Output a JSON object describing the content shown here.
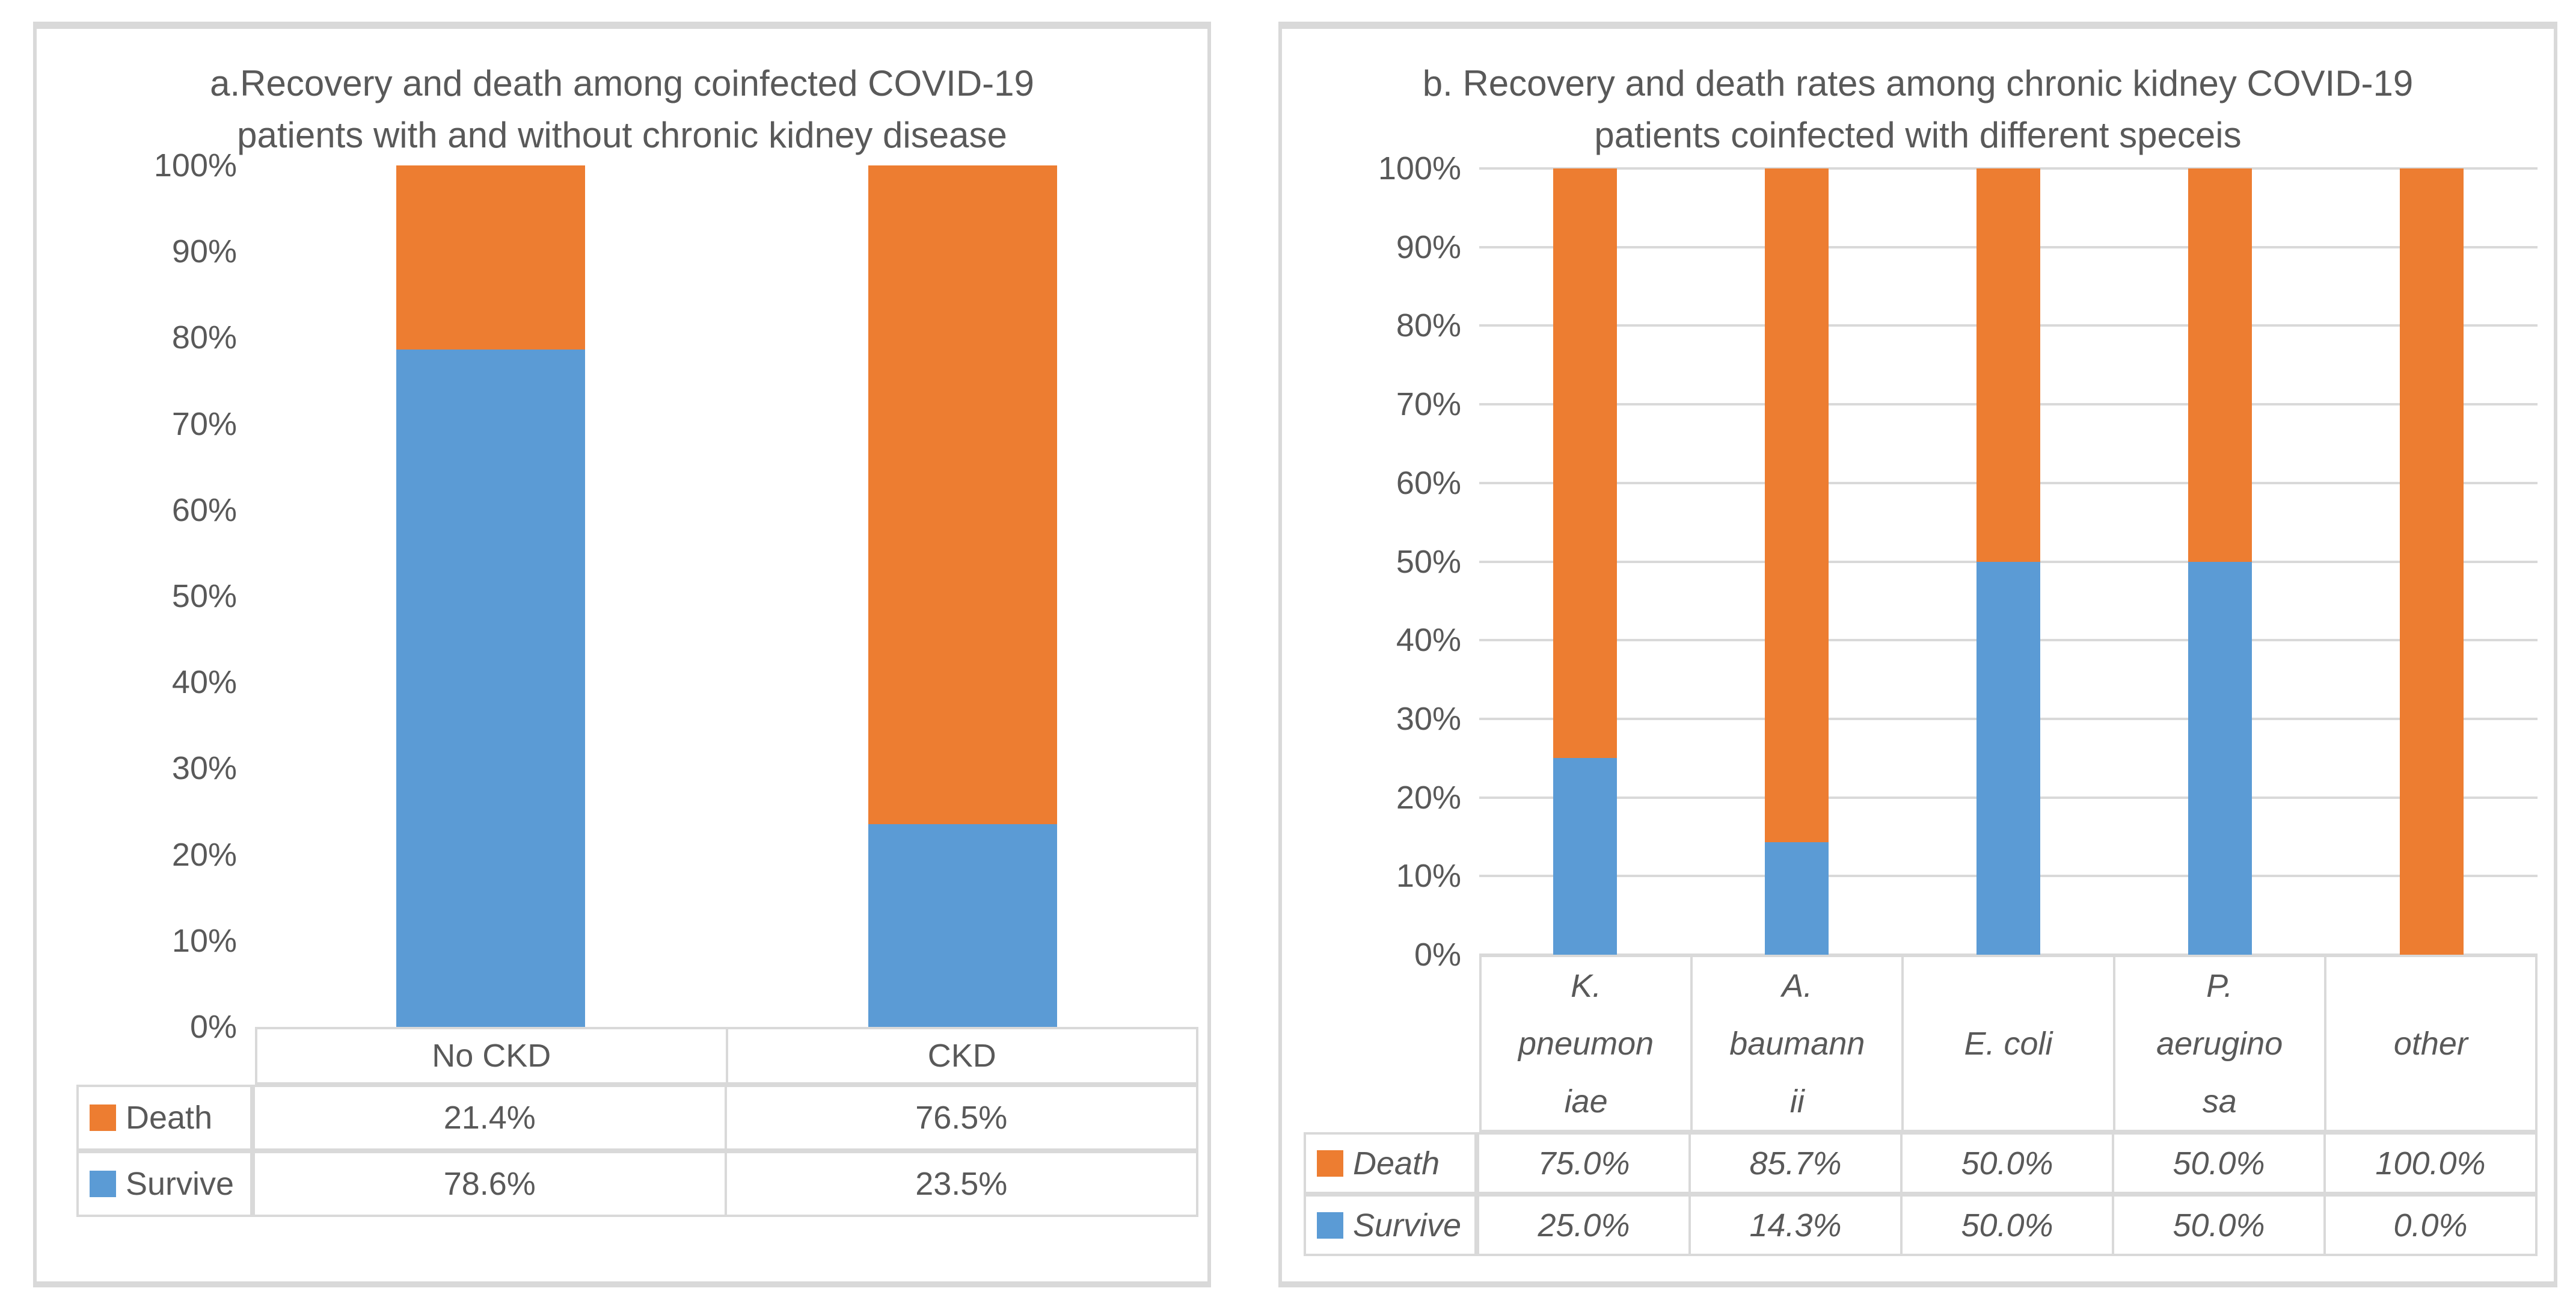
{
  "theme": {
    "background": "#ffffff",
    "text_color": "#595959",
    "border_color": "#d9d9d9",
    "death_color": "#ED7D31",
    "survive_color": "#5B9BD5"
  },
  "chart_data": [
    {
      "type": "bar",
      "stacked": true,
      "title_lines": [
        "a.Recovery and death among coinfected COVID-19",
        "patients with and without chronic kidney disease"
      ],
      "categories": [
        "No CKD",
        "CKD"
      ],
      "category_label_lines": [
        [
          "No CKD"
        ],
        [
          "CKD"
        ]
      ],
      "series": [
        {
          "name": "Death",
          "color": "#ED7D31",
          "values": [
            21.4,
            76.5
          ],
          "labels": [
            "21.4%",
            "76.5%"
          ]
        },
        {
          "name": "Survive",
          "color": "#5B9BD5",
          "values": [
            78.6,
            23.5
          ],
          "labels": [
            "78.6%",
            "23.5%"
          ]
        }
      ],
      "y_ticks": [
        "100%",
        "90%",
        "80%",
        "70%",
        "60%",
        "50%",
        "40%",
        "30%",
        "20%",
        "10%",
        "0%"
      ],
      "ylim": [
        0,
        100
      ],
      "gridlines": false,
      "italic_table_text": false,
      "legend_position": "table-left",
      "xlabel": "",
      "ylabel": ""
    },
    {
      "type": "bar",
      "stacked": true,
      "title_lines": [
        "b. Recovery and death rates among chronic kidney COVID-19",
        "patients coinfected with different speceis"
      ],
      "categories": [
        "K. pneumoniae",
        "A. baumannii",
        "E. coli",
        "P. aeruginosa",
        "other"
      ],
      "category_label_lines": [
        [
          "K.",
          "pneumon",
          "iae"
        ],
        [
          "A.",
          "baumann",
          "ii"
        ],
        [
          "E. coli"
        ],
        [
          "P.",
          "aerugino",
          "sa"
        ],
        [
          "other"
        ]
      ],
      "series": [
        {
          "name": "Death",
          "color": "#ED7D31",
          "values": [
            75.0,
            85.7,
            50.0,
            50.0,
            100.0
          ],
          "labels": [
            "75.0%",
            "85.7%",
            "50.0%",
            "50.0%",
            "100.0%"
          ]
        },
        {
          "name": "Survive",
          "color": "#5B9BD5",
          "values": [
            25.0,
            14.3,
            50.0,
            50.0,
            0.0
          ],
          "labels": [
            "25.0%",
            "14.3%",
            "50.0%",
            "50.0%",
            "0.0%"
          ]
        }
      ],
      "y_ticks": [
        "100%",
        "90%",
        "80%",
        "70%",
        "60%",
        "50%",
        "40%",
        "30%",
        "20%",
        "10%",
        "0%"
      ],
      "ylim": [
        0,
        100
      ],
      "gridlines": true,
      "italic_table_text": true,
      "legend_position": "table-left",
      "xlabel": "",
      "ylabel": ""
    }
  ]
}
